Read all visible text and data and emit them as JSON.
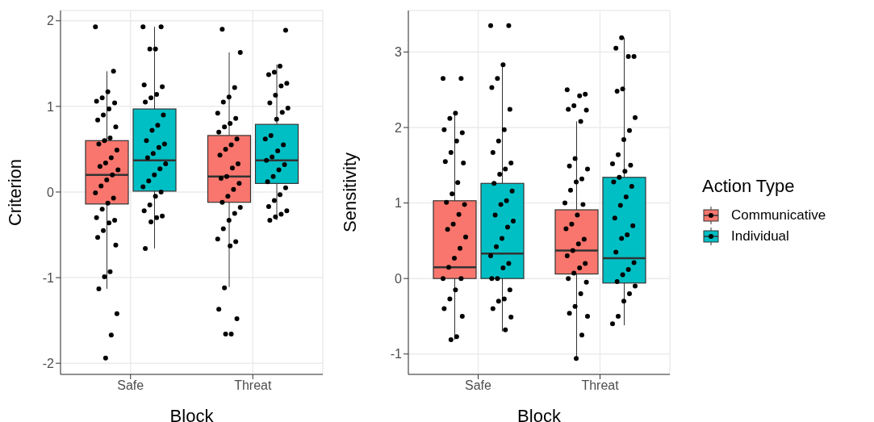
{
  "chart_data": [
    {
      "type": "box",
      "categories": [
        "Safe",
        "Threat"
      ],
      "xlabel": "Block",
      "ylabel": "Criterion",
      "ylim": [
        -2.13,
        2.12
      ],
      "yticks": [
        -2,
        -1,
        0,
        1,
        2
      ],
      "grid": true,
      "legend": false,
      "marker": "circle",
      "series": [
        {
          "color": "#f8766d",
          "boxes": [
            {
              "low": -1.13,
              "q1": -0.14,
              "median": 0.2,
              "q3": 0.6,
              "high": 1.41
            },
            {
              "low": -1.11,
              "q1": -0.12,
              "median": 0.18,
              "q3": 0.66,
              "high": 1.63
            }
          ]
        },
        {
          "color": "#00bfc4",
          "boxes": [
            {
              "low": -0.66,
              "q1": 0.01,
              "median": 0.37,
              "q3": 0.97,
              "high": 1.93
            },
            {
              "low": -0.33,
              "q1": 0.1,
              "median": 0.37,
              "q3": 0.79,
              "high": 1.49
            }
          ]
        },
        {
          "type": "scatter",
          "color": "#000000",
          "x": [
            "Safe",
            "Safe",
            "Safe",
            "Safe",
            "Safe",
            "Safe",
            "Safe",
            "Safe",
            "Safe",
            "Safe",
            "Safe",
            "Safe",
            "Safe",
            "Safe",
            "Safe",
            "Safe",
            "Safe",
            "Safe",
            "Safe",
            "Safe",
            "Safe",
            "Safe",
            "Safe",
            "Safe",
            "Safe",
            "Safe",
            "Safe",
            "Safe",
            "Safe",
            "Safe",
            "Safe",
            "Safe",
            "Safe",
            "Safe",
            "Safe",
            "Safe",
            "Safe",
            "Threat",
            "Threat",
            "Threat",
            "Threat",
            "Threat",
            "Threat",
            "Threat",
            "Threat",
            "Threat",
            "Threat",
            "Threat",
            "Threat",
            "Threat",
            "Threat",
            "Threat",
            "Threat",
            "Threat",
            "Threat",
            "Threat",
            "Threat",
            "Threat",
            "Threat",
            "Threat",
            "Threat",
            "Threat",
            "Threat",
            "Threat",
            "Threat",
            "Threat",
            "Threat",
            "Threat",
            "Threat",
            "Threat",
            "Threat"
          ],
          "values": [
            1.93,
            1.41,
            1.17,
            1.1,
            1.06,
            1.04,
            0.97,
            0.9,
            0.84,
            0.76,
            0.63,
            0.6,
            0.56,
            0.49,
            0.4,
            0.34,
            0.3,
            0.26,
            0.2,
            0.14,
            0.07,
            -0.01,
            -0.07,
            -0.13,
            -0.2,
            -0.3,
            -0.33,
            -0.36,
            -0.45,
            -0.53,
            -0.62,
            -0.93,
            -0.99,
            -1.13,
            -1.42,
            -1.67,
            -1.94,
            1.9,
            1.63,
            1.22,
            1.11,
            1.05,
            0.92,
            0.86,
            0.8,
            0.76,
            0.7,
            0.62,
            0.55,
            0.5,
            0.43,
            0.33,
            0.28,
            0.18,
            0.16,
            0.1,
            0.03,
            -0.05,
            -0.12,
            -0.18,
            -0.25,
            -0.33,
            -0.43,
            -0.55,
            -0.58,
            -0.63,
            -1.12,
            -1.37,
            -1.48,
            -1.66,
            -1.66
          ]
        },
        {
          "type": "scatter",
          "color": "#000000",
          "x": [
            "Safe",
            "Safe",
            "Safe",
            "Safe",
            "Safe",
            "Safe",
            "Safe",
            "Safe",
            "Safe",
            "Safe",
            "Safe",
            "Safe",
            "Safe",
            "Safe",
            "Safe",
            "Safe",
            "Safe",
            "Safe",
            "Safe",
            "Safe",
            "Safe",
            "Safe",
            "Safe",
            "Safe",
            "Safe",
            "Safe",
            "Safe",
            "Safe",
            "Safe",
            "Safe",
            "Threat",
            "Threat",
            "Threat",
            "Threat",
            "Threat",
            "Threat",
            "Threat",
            "Threat",
            "Threat",
            "Threat",
            "Threat",
            "Threat",
            "Threat",
            "Threat",
            "Threat",
            "Threat",
            "Threat",
            "Threat",
            "Threat",
            "Threat",
            "Threat",
            "Threat",
            "Threat",
            "Threat",
            "Threat",
            "Threat",
            "Threat",
            "Threat",
            "Threat"
          ],
          "values": [
            1.93,
            1.93,
            1.67,
            1.67,
            1.25,
            1.23,
            1.14,
            1.1,
            1.05,
            0.9,
            0.78,
            0.72,
            0.6,
            0.56,
            0.52,
            0.45,
            0.4,
            0.33,
            0.27,
            0.2,
            0.13,
            0.06,
            0.0,
            -0.05,
            -0.15,
            -0.22,
            -0.28,
            -0.3,
            -0.35,
            -0.66,
            1.89,
            1.47,
            1.4,
            1.37,
            1.27,
            1.24,
            1.13,
            1.04,
            0.98,
            0.93,
            0.85,
            0.66,
            0.62,
            0.55,
            0.48,
            0.41,
            0.37,
            0.32,
            0.26,
            0.18,
            0.12,
            0.05,
            -0.03,
            -0.1,
            -0.17,
            -0.22,
            -0.26,
            -0.29,
            -0.33
          ]
        }
      ]
    },
    {
      "type": "box",
      "categories": [
        "Safe",
        "Threat"
      ],
      "xlabel": "Block",
      "ylabel": "Sensitivity",
      "ylim": [
        -1.27,
        3.55
      ],
      "yticks": [
        -1,
        0,
        1,
        2,
        3
      ],
      "grid": true,
      "legend": "right",
      "legend_title": "Action Type",
      "marker": "circle",
      "series": [
        {
          "name": "Communicative",
          "color": "#f8766d",
          "boxes": [
            {
              "low": -0.81,
              "q1": 0.0,
              "median": 0.15,
              "q3": 1.03,
              "high": 2.19
            },
            {
              "low": -1.06,
              "q1": 0.06,
              "median": 0.37,
              "q3": 0.91,
              "high": 2.08
            }
          ]
        },
        {
          "name": "Individual",
          "color": "#00bfc4",
          "boxes": [
            {
              "low": -0.7,
              "q1": 0.0,
              "median": 0.33,
              "q3": 1.26,
              "high": 2.82
            },
            {
              "low": -0.62,
              "q1": -0.06,
              "median": 0.27,
              "q3": 1.34,
              "high": 3.19
            }
          ]
        },
        {
          "type": "scatter",
          "color": "#000000",
          "x": [
            "Safe",
            "Safe",
            "Safe",
            "Safe",
            "Safe",
            "Safe",
            "Safe",
            "Safe",
            "Safe",
            "Safe",
            "Safe",
            "Safe",
            "Safe",
            "Safe",
            "Safe",
            "Safe",
            "Safe",
            "Safe",
            "Safe",
            "Safe",
            "Safe",
            "Safe",
            "Safe",
            "Safe",
            "Safe",
            "Safe",
            "Safe",
            "Safe",
            "Safe",
            "Threat",
            "Threat",
            "Threat",
            "Threat",
            "Threat",
            "Threat",
            "Threat",
            "Threat",
            "Threat",
            "Threat",
            "Threat",
            "Threat",
            "Threat",
            "Threat",
            "Threat",
            "Threat",
            "Threat",
            "Threat",
            "Threat",
            "Threat",
            "Threat",
            "Threat",
            "Threat",
            "Threat",
            "Threat",
            "Threat",
            "Threat",
            "Threat",
            "Threat",
            "Threat",
            "Threat",
            "Threat",
            "Threat"
          ],
          "values": [
            2.65,
            2.65,
            2.19,
            2.12,
            1.97,
            1.93,
            1.82,
            1.67,
            1.55,
            1.53,
            1.27,
            1.12,
            1.01,
            0.98,
            0.85,
            0.72,
            0.65,
            0.55,
            0.4,
            0.27,
            0.15,
            0.0,
            0.0,
            -0.15,
            -0.27,
            -0.4,
            -0.5,
            -0.77,
            -0.81,
            2.5,
            2.44,
            2.42,
            2.29,
            2.24,
            2.23,
            2.08,
            1.59,
            1.49,
            1.45,
            1.32,
            1.28,
            1.17,
            1.0,
            0.98,
            0.84,
            0.72,
            0.66,
            0.52,
            0.46,
            0.37,
            0.3,
            0.2,
            0.14,
            0.07,
            0.0,
            -0.05,
            -0.2,
            -0.37,
            -0.46,
            -0.5,
            -0.75,
            -1.06
          ]
        },
        {
          "type": "scatter",
          "color": "#000000",
          "x": [
            "Safe",
            "Safe",
            "Safe",
            "Safe",
            "Safe",
            "Safe",
            "Safe",
            "Safe",
            "Safe",
            "Safe",
            "Safe",
            "Safe",
            "Safe",
            "Safe",
            "Safe",
            "Safe",
            "Safe",
            "Safe",
            "Safe",
            "Safe",
            "Safe",
            "Safe",
            "Safe",
            "Safe",
            "Safe",
            "Safe",
            "Safe",
            "Safe",
            "Safe",
            "Safe",
            "Safe",
            "Safe",
            "Threat",
            "Threat",
            "Threat",
            "Threat",
            "Threat",
            "Threat",
            "Threat",
            "Threat",
            "Threat",
            "Threat",
            "Threat",
            "Threat",
            "Threat",
            "Threat",
            "Threat",
            "Threat",
            "Threat",
            "Threat",
            "Threat",
            "Threat",
            "Threat",
            "Threat",
            "Threat",
            "Threat",
            "Threat",
            "Threat",
            "Threat",
            "Threat",
            "Threat",
            "Threat",
            "Threat",
            "Threat"
          ],
          "values": [
            3.35,
            3.35,
            2.83,
            2.65,
            2.53,
            2.24,
            1.97,
            1.82,
            1.67,
            1.53,
            1.45,
            1.38,
            1.26,
            1.16,
            1.03,
            0.98,
            0.84,
            0.76,
            0.68,
            0.53,
            0.42,
            0.3,
            0.2,
            0.14,
            0.0,
            0.0,
            -0.15,
            -0.27,
            -0.3,
            -0.4,
            -0.51,
            -0.68,
            3.19,
            3.05,
            2.94,
            2.94,
            2.51,
            2.48,
            2.13,
            1.96,
            1.84,
            1.64,
            1.52,
            1.5,
            1.42,
            1.34,
            1.28,
            1.22,
            1.08,
            0.97,
            0.8,
            0.7,
            0.58,
            0.53,
            0.35,
            0.21,
            0.12,
            0.05,
            -0.04,
            -0.1,
            -0.2,
            -0.3,
            -0.5,
            -0.6
          ]
        }
      ]
    }
  ]
}
